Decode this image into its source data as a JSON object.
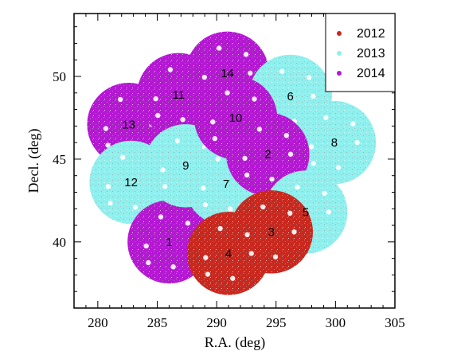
{
  "chart_data": {
    "type": "scatter",
    "title": "",
    "xlabel": "R.A. (deg)",
    "ylabel": "Decl. (deg)",
    "xlim": [
      278,
      305
    ],
    "ylim": [
      36.0,
      53.8
    ],
    "x_ticks": [
      280,
      285,
      290,
      295,
      300,
      305
    ],
    "y_ticks": [
      40,
      45,
      50
    ],
    "grid": false,
    "legend_position": "top-right",
    "series": [
      {
        "name": "2012",
        "color": "#c8281e"
      },
      {
        "name": "2013",
        "color": "#8ff0ee"
      },
      {
        "name": "2014",
        "color": "#b418d2"
      }
    ],
    "fields": [
      {
        "label": "1",
        "ra": 286.0,
        "dec": 40.0,
        "radius": 3.5,
        "year": "2014"
      },
      {
        "label": "2",
        "ra": 294.3,
        "dec": 45.3,
        "radius": 3.5,
        "year": "2014"
      },
      {
        "label": "3",
        "ra": 294.6,
        "dec": 40.6,
        "radius": 3.5,
        "year": "2012"
      },
      {
        "label": "4",
        "ra": 291.0,
        "dec": 39.3,
        "radius": 3.5,
        "year": "2012"
      },
      {
        "label": "5",
        "ra": 297.5,
        "dec": 41.8,
        "radius": 3.5,
        "year": "2013"
      },
      {
        "label": "6",
        "ra": 296.2,
        "dec": 48.8,
        "radius": 3.5,
        "year": "2013"
      },
      {
        "label": "7",
        "ra": 290.8,
        "dec": 43.5,
        "radius": 3.5,
        "year": "2013"
      },
      {
        "label": "8",
        "ra": 299.9,
        "dec": 46.0,
        "radius": 3.5,
        "year": "2013"
      },
      {
        "label": "9",
        "ra": 287.4,
        "dec": 44.6,
        "radius": 3.5,
        "year": "2013"
      },
      {
        "label": "10",
        "ra": 291.6,
        "dec": 47.5,
        "radius": 3.5,
        "year": "2014"
      },
      {
        "label": "11",
        "ra": 286.8,
        "dec": 48.9,
        "radius": 3.5,
        "year": "2014"
      },
      {
        "label": "12",
        "ra": 282.8,
        "dec": 43.6,
        "radius": 3.5,
        "year": "2013"
      },
      {
        "label": "13",
        "ra": 282.6,
        "dec": 47.1,
        "radius": 3.5,
        "year": "2014"
      },
      {
        "label": "14",
        "ra": 290.9,
        "dec": 50.2,
        "radius": 3.5,
        "year": "2014"
      }
    ]
  }
}
